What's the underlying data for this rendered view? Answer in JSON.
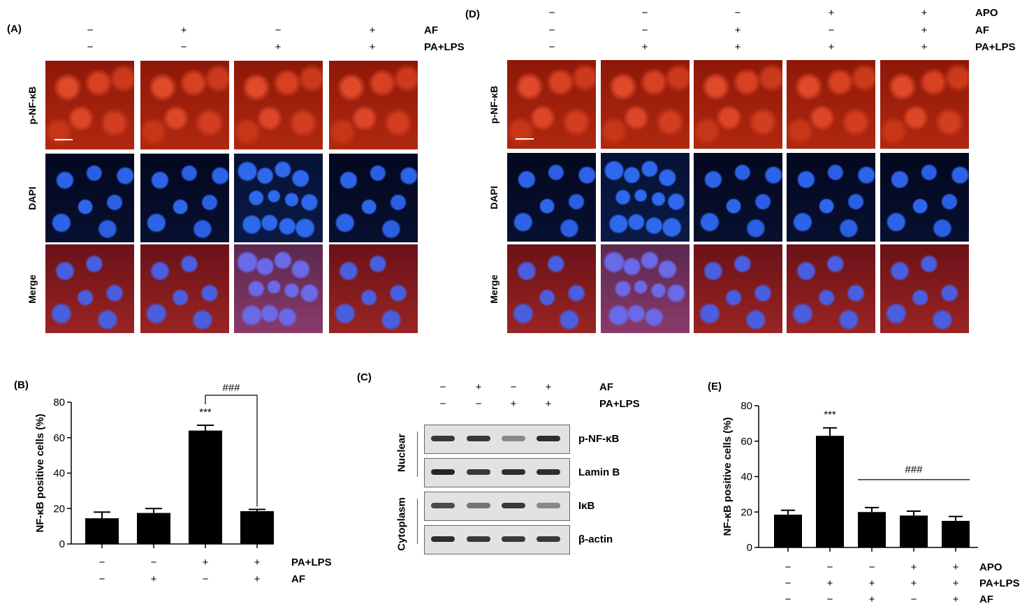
{
  "panelA": {
    "letter": "(A)",
    "conditions": [
      {
        "name": "AF",
        "signs": [
          "−",
          "+",
          "−",
          "+"
        ]
      },
      {
        "name": "PA+LPS",
        "signs": [
          "−",
          "−",
          "+",
          "+"
        ]
      }
    ],
    "rows": [
      "p-NF-κB",
      "DAPI",
      "Merge"
    ]
  },
  "panelD": {
    "letter": "(D)",
    "conditions": [
      {
        "name": "APO",
        "signs": [
          "−",
          "−",
          "−",
          "+",
          "+"
        ]
      },
      {
        "name": "AF",
        "signs": [
          "−",
          "−",
          "+",
          "−",
          "+"
        ]
      },
      {
        "name": "PA+LPS",
        "signs": [
          "−",
          "+",
          "+",
          "+",
          "+"
        ]
      }
    ],
    "rows": [
      "p-NF-κB",
      "DAPI",
      "Merge"
    ]
  },
  "panelC": {
    "letter": "(C)",
    "conditions": [
      {
        "name": "AF",
        "signs": [
          "−",
          "+",
          "−",
          "+"
        ]
      },
      {
        "name": "PA+LPS",
        "signs": [
          "−",
          "−",
          "+",
          "+"
        ]
      }
    ],
    "groups": [
      "Nuclear",
      "Cytoplasm"
    ],
    "blots": [
      {
        "label": "p-NF-κB",
        "intensity": [
          0.85,
          0.85,
          0.45,
          0.9
        ]
      },
      {
        "label": "Lamin B",
        "intensity": [
          0.95,
          0.85,
          0.9,
          0.9
        ]
      },
      {
        "label": "IκB",
        "intensity": [
          0.75,
          0.55,
          0.85,
          0.45
        ]
      },
      {
        "label": "β-actin",
        "intensity": [
          0.9,
          0.85,
          0.85,
          0.85
        ]
      }
    ]
  },
  "chart_data": [
    {
      "panel": "(B)",
      "type": "bar",
      "categories": [
        "1",
        "2",
        "3",
        "4"
      ],
      "values": [
        14.5,
        17.5,
        64,
        18.5
      ],
      "errors": [
        3.5,
        2.5,
        3,
        1
      ],
      "ylabel": "NF-κB positive cells (%)",
      "ylim": [
        0,
        80
      ],
      "yticks": [
        0,
        20,
        40,
        60,
        80
      ],
      "conditions": [
        {
          "name": "PA+LPS",
          "signs": [
            "−",
            "−",
            "+",
            "+"
          ]
        },
        {
          "name": "AF",
          "signs": [
            "−",
            "+",
            "−",
            "+"
          ]
        }
      ],
      "annotations": [
        {
          "text": "***",
          "bar": 2
        },
        {
          "text": "###",
          "bracket": [
            2,
            3
          ]
        }
      ],
      "grid": false,
      "bar_color": "#000000"
    },
    {
      "panel": "(E)",
      "type": "bar",
      "categories": [
        "1",
        "2",
        "3",
        "4",
        "5"
      ],
      "values": [
        18.5,
        63,
        20,
        18,
        15
      ],
      "errors": [
        2.5,
        4.5,
        2.5,
        2.5,
        2.5
      ],
      "ylabel": "NF-κB positive cells (%)",
      "ylim": [
        0,
        80
      ],
      "yticks": [
        0,
        20,
        40,
        60,
        80
      ],
      "conditions": [
        {
          "name": "APO",
          "signs": [
            "−",
            "−",
            "−",
            "+",
            "+"
          ]
        },
        {
          "name": "PA+LPS",
          "signs": [
            "−",
            "+",
            "+",
            "+",
            "+"
          ]
        },
        {
          "name": "AF",
          "signs": [
            "−",
            "−",
            "+",
            "−",
            "+"
          ]
        }
      ],
      "annotations": [
        {
          "text": "***",
          "bar": 1
        },
        {
          "text": "###",
          "line": [
            2,
            4
          ]
        }
      ],
      "grid": false,
      "bar_color": "#000000"
    }
  ]
}
